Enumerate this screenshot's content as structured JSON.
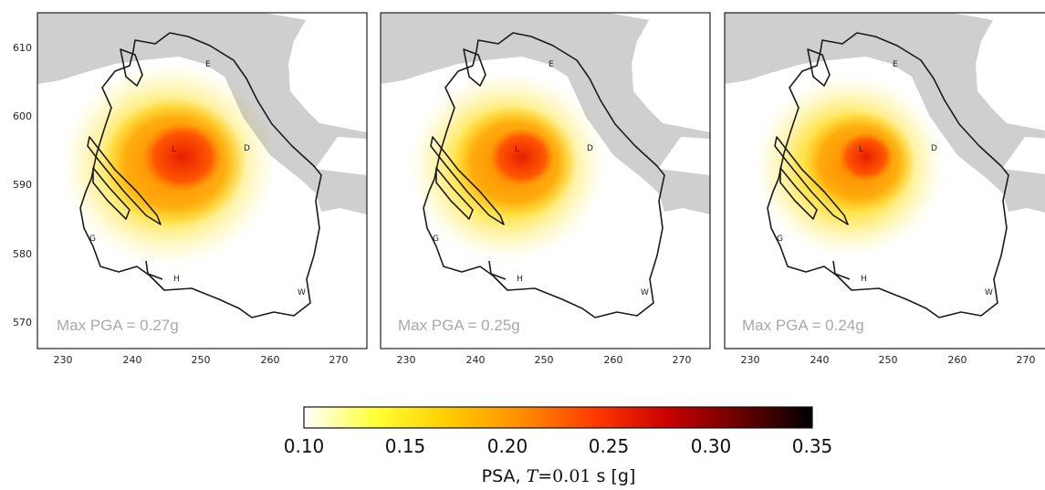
{
  "colors": {
    "sea": "#cfcfcf",
    "outline": "#1a1a1a",
    "max_label": "#a9a9a9",
    "scale": [
      "#ffffff",
      "#ffff33",
      "#ffcc00",
      "#ff8c00",
      "#ff3a00",
      "#cc0000",
      "#6b0000",
      "#000000"
    ]
  },
  "panels": [
    {
      "max_label": "Max PGA = 0.27g",
      "max_pga": 0.27,
      "x_ticks": [
        "230",
        "240",
        "250",
        "260",
        "270"
      ],
      "y_ticks": [
        "610",
        "600",
        "590",
        "580",
        "570"
      ],
      "site_labels": [
        "E",
        "D",
        "L",
        "G",
        "H",
        "W"
      ]
    },
    {
      "max_label": "Max PGA = 0.25g",
      "max_pga": 0.25,
      "x_ticks": [
        "230",
        "240",
        "250",
        "260",
        "270"
      ],
      "y_ticks": [],
      "site_labels": [
        "E",
        "D",
        "L",
        "G",
        "H",
        "W"
      ]
    },
    {
      "max_label": "Max PGA = 0.24g",
      "max_pga": 0.24,
      "x_ticks": [
        "230",
        "240",
        "250",
        "260",
        "270"
      ],
      "y_ticks": [],
      "site_labels": [
        "E",
        "D",
        "L",
        "G",
        "H",
        "W"
      ]
    }
  ],
  "colorbar": {
    "ticks": [
      "0.10",
      "0.15",
      "0.20",
      "0.25",
      "0.30",
      "0.35"
    ],
    "min": 0.1,
    "max": 0.35,
    "title_prefix": "PSA, ",
    "title_var": "T",
    "title_eq": "=0.01",
    "title_suffix": " s   [g]"
  }
}
